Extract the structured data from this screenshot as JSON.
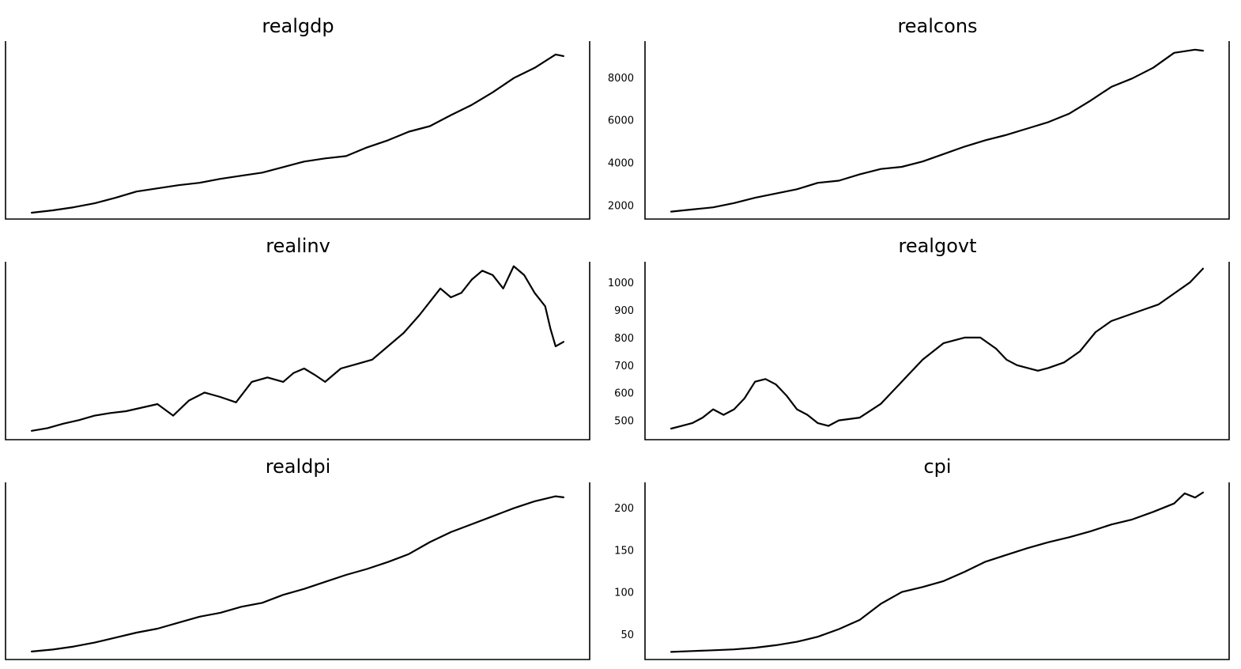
{
  "chart_data": [
    {
      "type": "line",
      "title": "realgdp",
      "xlabel": "",
      "ylabel": "",
      "ylim": [
        2300,
        13600
      ],
      "yticks": [],
      "grid": false,
      "legend": "none",
      "x": [
        0,
        8,
        16,
        24,
        32,
        40,
        48,
        56,
        64,
        72,
        80,
        88,
        96,
        104,
        112,
        120,
        128,
        136,
        144,
        152,
        160,
        168,
        176,
        184,
        192,
        200,
        203
      ],
      "series": [
        {
          "values": [
            2700,
            2850,
            3050,
            3300,
            3650,
            4050,
            4250,
            4450,
            4600,
            4850,
            5050,
            5250,
            5600,
            5950,
            6150,
            6300,
            6850,
            7300,
            7850,
            8200,
            8900,
            9550,
            10350,
            11250,
            11900,
            12750,
            12650
          ]
        }
      ]
    },
    {
      "type": "line",
      "title": "realcons",
      "xlabel": "",
      "ylabel": "",
      "ylim": [
        1350,
        9700
      ],
      "yticks": [
        2000,
        4000,
        6000,
        8000
      ],
      "grid": false,
      "legend": "none",
      "x": [
        0,
        8,
        16,
        24,
        32,
        40,
        48,
        56,
        64,
        72,
        80,
        88,
        96,
        104,
        112,
        120,
        128,
        136,
        144,
        152,
        160,
        168,
        176,
        184,
        192,
        200,
        203
      ],
      "series": [
        {
          "values": [
            1700,
            1800,
            1900,
            2100,
            2350,
            2550,
            2750,
            3050,
            3150,
            3450,
            3700,
            3800,
            4050,
            4400,
            4750,
            5050,
            5300,
            5600,
            5900,
            6300,
            6900,
            7550,
            7950,
            8450,
            9150,
            9300,
            9250
          ]
        }
      ]
    },
    {
      "type": "line",
      "title": "realinv",
      "xlabel": "",
      "ylabel": "",
      "ylim": [
        200,
        2200
      ],
      "yticks": [],
      "grid": false,
      "legend": "none",
      "x": [
        0,
        6,
        12,
        18,
        24,
        30,
        36,
        42,
        48,
        54,
        60,
        66,
        72,
        78,
        84,
        90,
        96,
        100,
        104,
        108,
        112,
        118,
        124,
        130,
        136,
        142,
        148,
        152,
        156,
        160,
        164,
        168,
        172,
        176,
        180,
        184,
        188,
        192,
        196,
        198,
        200,
        203
      ],
      "series": [
        {
          "values": [
            300,
            330,
            380,
            420,
            470,
            500,
            520,
            560,
            600,
            470,
            640,
            730,
            680,
            620,
            850,
            900,
            850,
            950,
            1000,
            930,
            850,
            1000,
            1050,
            1100,
            1250,
            1400,
            1600,
            1750,
            1900,
            1800,
            1850,
            2000,
            2100,
            2050,
            1900,
            2150,
            2050,
            1850,
            1700,
            1450,
            1250,
            1300
          ]
        }
      ]
    },
    {
      "type": "line",
      "title": "realgovt",
      "xlabel": "",
      "ylabel": "",
      "ylim": [
        430,
        1075
      ],
      "yticks": [
        500,
        600,
        700,
        800,
        900,
        1000
      ],
      "grid": false,
      "legend": "none",
      "x": [
        0,
        4,
        8,
        12,
        16,
        20,
        24,
        28,
        32,
        36,
        40,
        44,
        48,
        52,
        56,
        60,
        64,
        72,
        80,
        88,
        96,
        104,
        112,
        118,
        124,
        128,
        132,
        136,
        140,
        144,
        150,
        156,
        162,
        168,
        174,
        180,
        186,
        192,
        198,
        203
      ],
      "series": [
        {
          "values": [
            470,
            480,
            490,
            510,
            540,
            520,
            540,
            580,
            640,
            650,
            630,
            590,
            540,
            520,
            490,
            480,
            500,
            510,
            560,
            640,
            720,
            780,
            800,
            800,
            760,
            720,
            700,
            690,
            680,
            690,
            710,
            750,
            820,
            860,
            880,
            900,
            920,
            960,
            1000,
            1050
          ]
        }
      ]
    },
    {
      "type": "line",
      "title": "realdpi",
      "xlabel": "",
      "ylabel": "",
      "ylim": [
        1500,
        10400
      ],
      "yticks": [],
      "grid": false,
      "legend": "none",
      "x": [
        0,
        8,
        16,
        24,
        32,
        40,
        48,
        56,
        64,
        72,
        80,
        88,
        96,
        104,
        112,
        120,
        128,
        136,
        144,
        152,
        160,
        168,
        176,
        184,
        192,
        200,
        203
      ],
      "series": [
        {
          "values": [
            1900,
            2000,
            2150,
            2350,
            2600,
            2850,
            3050,
            3350,
            3650,
            3850,
            4150,
            4350,
            4750,
            5050,
            5400,
            5750,
            6050,
            6400,
            6800,
            7400,
            7900,
            8300,
            8700,
            9100,
            9450,
            9700,
            9650
          ]
        }
      ]
    },
    {
      "type": "line",
      "title": "cpi",
      "xlabel": "",
      "ylabel": "",
      "ylim": [
        20,
        230
      ],
      "yticks": [
        50,
        100,
        150,
        200
      ],
      "grid": false,
      "legend": "none",
      "x": [
        0,
        8,
        16,
        24,
        32,
        40,
        48,
        56,
        64,
        72,
        80,
        88,
        96,
        104,
        112,
        120,
        128,
        136,
        144,
        152,
        160,
        168,
        176,
        184,
        192,
        196,
        200,
        203
      ],
      "series": [
        {
          "values": [
            29,
            30,
            31,
            32,
            34,
            37,
            41,
            47,
            56,
            67,
            86,
            100,
            106,
            113,
            124,
            136,
            144,
            152,
            159,
            165,
            172,
            180,
            186,
            195,
            205,
            217,
            212,
            218
          ]
        }
      ]
    }
  ]
}
